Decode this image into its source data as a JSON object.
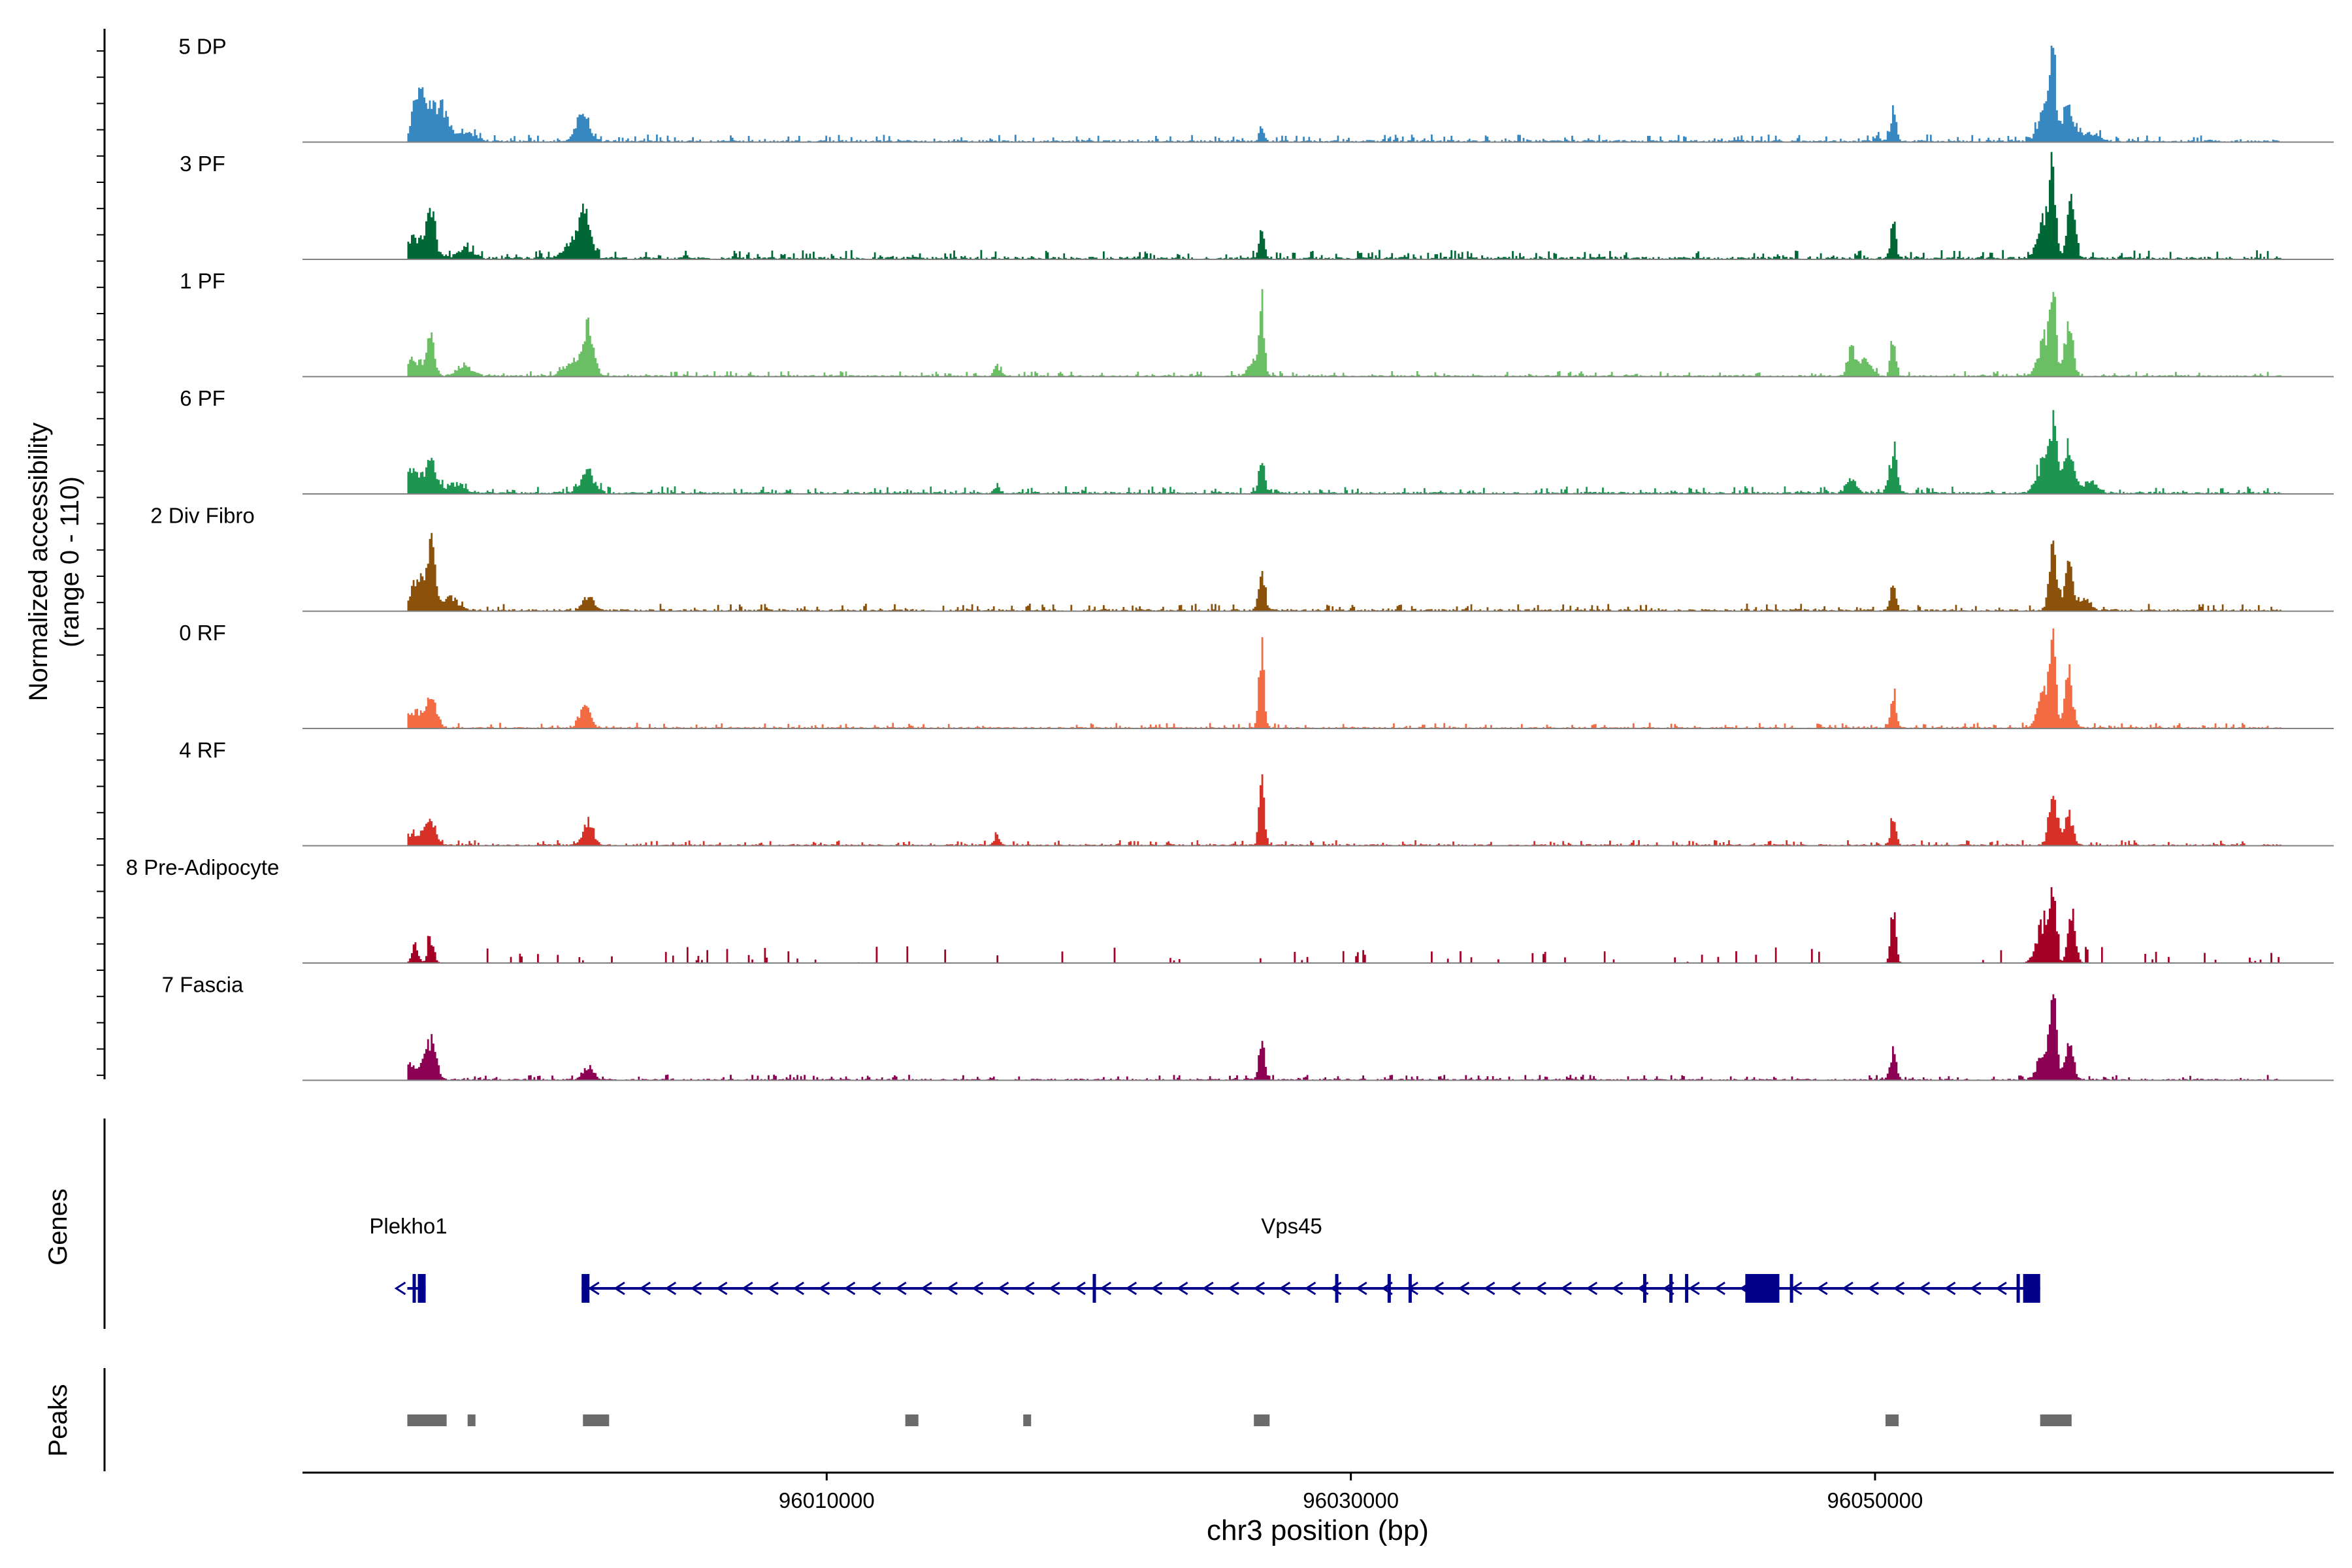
{
  "chart_data": {
    "type": "area",
    "title": "",
    "xlabel": "chr3 position (bp)",
    "ylabel_line1": "Normalized accessibility",
    "ylabel_line2": "(range 0 - 110)",
    "ylim": [
      0,
      110
    ],
    "xlim": [
      95990000,
      96067500
    ],
    "xticks": [
      96010000,
      96030000,
      96050000
    ],
    "xtick_labels": [
      "96010000",
      "96030000",
      "96050000"
    ],
    "genes_label": "Genes",
    "peaks_label": "Peaks",
    "colors": {
      "axis": "#000000",
      "baseline": "#808080",
      "gene": "#00008b",
      "peak": "#6b6b6b"
    },
    "series": [
      {
        "name": "5 DP",
        "color": "#3787c0",
        "noise": 4,
        "seed": 11,
        "peaks": [
          [
            95994400,
            58,
            200
          ],
          [
            95994900,
            35,
            250
          ],
          [
            95995400,
            28,
            250
          ],
          [
            95996300,
            12,
            300
          ],
          [
            96000700,
            35,
            250
          ],
          [
            96026600,
            22,
            80
          ],
          [
            96050700,
            44,
            100
          ],
          [
            96050100,
            5,
            100
          ],
          [
            96056800,
            100,
            100
          ],
          [
            96056500,
            48,
            250
          ],
          [
            96057400,
            42,
            200
          ],
          [
            96058200,
            10,
            300
          ]
        ]
      },
      {
        "name": "3 PF",
        "color": "#006837",
        "noise": 5,
        "seed": 23,
        "peaks": [
          [
            95994300,
            25,
            400
          ],
          [
            95994900,
            60,
            150
          ],
          [
            95996200,
            12,
            300
          ],
          [
            96000300,
            20,
            300
          ],
          [
            96000800,
            55,
            200
          ],
          [
            96026600,
            32,
            100
          ],
          [
            96050700,
            43,
            100
          ],
          [
            96056800,
            88,
            100
          ],
          [
            96056500,
            50,
            250
          ],
          [
            96057500,
            70,
            150
          ]
        ]
      },
      {
        "name": "1 PF",
        "color": "#6abf64",
        "noise": 3,
        "seed": 37,
        "peaks": [
          [
            95994200,
            22,
            300
          ],
          [
            95994900,
            42,
            150
          ],
          [
            95996200,
            12,
            300
          ],
          [
            96000300,
            18,
            300
          ],
          [
            96000900,
            55,
            200
          ],
          [
            96016500,
            12,
            120
          ],
          [
            96026600,
            88,
            100
          ],
          [
            96026300,
            15,
            200
          ],
          [
            96049100,
            30,
            150
          ],
          [
            96049600,
            18,
            250
          ],
          [
            96050700,
            50,
            100
          ],
          [
            96056800,
            90,
            100
          ],
          [
            96056500,
            45,
            250
          ],
          [
            96057400,
            65,
            150
          ]
        ]
      },
      {
        "name": "6 PF",
        "color": "#1e9652",
        "noise": 4,
        "seed": 41,
        "peaks": [
          [
            95994200,
            25,
            300
          ],
          [
            95994900,
            38,
            200
          ],
          [
            95995800,
            12,
            300
          ],
          [
            96000900,
            25,
            250
          ],
          [
            96016500,
            10,
            100
          ],
          [
            96026600,
            40,
            100
          ],
          [
            96049100,
            15,
            200
          ],
          [
            96050700,
            50,
            150
          ],
          [
            96056800,
            72,
            150
          ],
          [
            96056400,
            35,
            250
          ],
          [
            96057400,
            55,
            200
          ],
          [
            96058200,
            12,
            300
          ]
        ]
      },
      {
        "name": "2 Div Fibro",
        "color": "#8c510a",
        "noise": 4,
        "seed": 53,
        "peaks": [
          [
            95994400,
            40,
            250
          ],
          [
            95994900,
            75,
            150
          ],
          [
            95995600,
            15,
            300
          ],
          [
            96000900,
            18,
            200
          ],
          [
            96026600,
            40,
            120
          ],
          [
            96050700,
            35,
            100
          ],
          [
            96056800,
            75,
            150
          ],
          [
            96057400,
            50,
            150
          ],
          [
            96058000,
            15,
            200
          ]
        ]
      },
      {
        "name": "0 RF",
        "color": "#f26b43",
        "noise": 3,
        "seed": 61,
        "peaks": [
          [
            95994200,
            20,
            300
          ],
          [
            95994900,
            35,
            200
          ],
          [
            96000800,
            25,
            200
          ],
          [
            96026600,
            95,
            100
          ],
          [
            96050700,
            45,
            100
          ],
          [
            96056800,
            100,
            100
          ],
          [
            96056500,
            48,
            250
          ],
          [
            96057400,
            60,
            150
          ]
        ]
      },
      {
        "name": "4 RF",
        "color": "#d73027",
        "noise": 3,
        "seed": 67,
        "peaks": [
          [
            95994200,
            15,
            300
          ],
          [
            95994900,
            30,
            200
          ],
          [
            96000900,
            28,
            200
          ],
          [
            96016500,
            12,
            100
          ],
          [
            96026600,
            72,
            100
          ],
          [
            96050700,
            38,
            100
          ],
          [
            96056800,
            70,
            150
          ],
          [
            96057400,
            40,
            150
          ]
        ]
      },
      {
        "name": "8 Pre-Adipocyte",
        "color": "#a50026",
        "noise": 0,
        "seed": 71,
        "spiky": true,
        "peaks": [
          [
            95994300,
            20,
            120
          ],
          [
            95994900,
            28,
            120
          ],
          [
            96050700,
            58,
            100
          ],
          [
            96056800,
            90,
            100
          ],
          [
            96056400,
            45,
            250
          ],
          [
            96057500,
            50,
            150
          ]
        ]
      },
      {
        "name": "7 Fascia",
        "color": "#8b0052",
        "noise": 3,
        "seed": 83,
        "peaks": [
          [
            95994200,
            20,
            300
          ],
          [
            95994900,
            48,
            200
          ],
          [
            96000900,
            15,
            200
          ],
          [
            96026600,
            38,
            120
          ],
          [
            96050700,
            35,
            120
          ],
          [
            96056800,
            85,
            120
          ],
          [
            96056500,
            40,
            250
          ],
          [
            96057400,
            45,
            150
          ]
        ]
      }
    ],
    "genes": [
      {
        "name": "Plekho1",
        "start": 95994000,
        "end": 95994700,
        "strand": "-",
        "exons": [
          [
            95994200,
            95994300
          ],
          [
            95994400,
            95994700
          ]
        ],
        "chevron_count": 1
      },
      {
        "name": "Vps45",
        "start": 96000650,
        "end": 96056300,
        "strand": "-",
        "exons": [
          [
            96000650,
            96000950
          ],
          [
            96020150,
            96020250
          ],
          [
            96029400,
            96029500
          ],
          [
            96031400,
            96031500
          ],
          [
            96032200,
            96032300
          ],
          [
            96041150,
            96041250
          ],
          [
            96042150,
            96042250
          ],
          [
            96042750,
            96042850
          ],
          [
            96045050,
            96046350
          ],
          [
            96046750,
            96046850
          ],
          [
            96055400,
            96055500
          ],
          [
            96055650,
            96056300
          ]
        ],
        "chevron_count": 57
      }
    ],
    "peaks": [
      [
        95994000,
        95995500
      ],
      [
        95996300,
        95996600
      ],
      [
        96000700,
        96001700
      ],
      [
        96013000,
        96013500
      ],
      [
        96017500,
        96017800
      ],
      [
        96026300,
        96026900
      ],
      [
        96050400,
        96050900
      ],
      [
        96056300,
        96057500
      ]
    ]
  }
}
